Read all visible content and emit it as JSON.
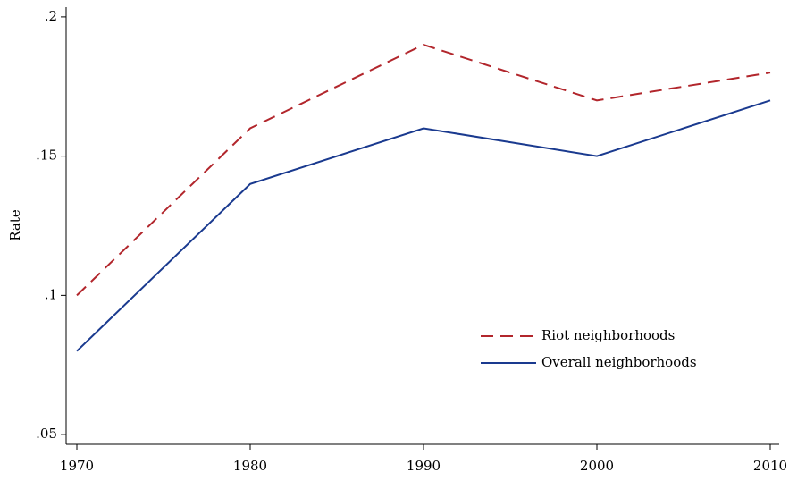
{
  "chart_data": {
    "type": "line",
    "y_label": "Rate",
    "x": [
      1970,
      1980,
      1990,
      2000,
      2010
    ],
    "xlim": [
      1970,
      2010
    ],
    "xticks": [
      1970,
      1980,
      1990,
      2000,
      2010
    ],
    "ylim": [
      0.0465,
      0.2035
    ],
    "yticks": [
      {
        "value": 0.05,
        "label": ".05"
      },
      {
        "value": 0.1,
        "label": ".1"
      },
      {
        "value": 0.15,
        "label": ".15"
      },
      {
        "value": 0.2,
        "label": ".2"
      }
    ],
    "grid": false,
    "legend": "lower right",
    "series": [
      {
        "name": "Riot neighborhoods",
        "color": "#b2262c",
        "linestyle": "dashed",
        "values": [
          0.1,
          0.16,
          0.19,
          0.17,
          0.18
        ]
      },
      {
        "name": "Overall neighborhoods",
        "color": "#1a3a8f",
        "linestyle": "solid",
        "values": [
          0.08,
          0.14,
          0.16,
          0.15,
          0.17
        ]
      }
    ]
  }
}
